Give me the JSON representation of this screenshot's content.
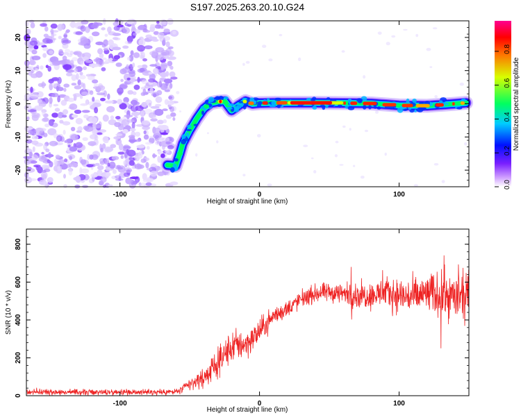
{
  "figure_title": "S197.2025.263.20.10.G24",
  "chart_data": [
    {
      "type": "heatmap",
      "name": "spectrogram",
      "xlabel": "Height of straight line (km)",
      "ylabel": "Frequency (Hz)",
      "xlim": [
        -167,
        150
      ],
      "ylim": [
        -25,
        25
      ],
      "xticks": [
        -100,
        0,
        100
      ],
      "xtick_labels": [
        "-100",
        "0",
        "100"
      ],
      "yticks": [
        -20,
        -10,
        0,
        10,
        20
      ],
      "ytick_labels": [
        "-20",
        "-10",
        "0",
        "10",
        "20"
      ],
      "noise_region_km": [
        -167,
        -65
      ],
      "signal_trace": {
        "x": [
          -66,
          -60,
          -57,
          -55,
          -50,
          -45,
          -40,
          -35,
          -30,
          -25,
          -20,
          -15,
          -10,
          -5,
          0,
          10,
          20,
          40,
          60,
          80,
          100,
          120,
          140,
          148
        ],
        "y": [
          -18.5,
          -18.7,
          -15,
          -12,
          -8,
          -4.5,
          -1.5,
          0.2,
          0.6,
          0.8,
          -2,
          -0.5,
          0.8,
          0,
          0.2,
          0.3,
          0.3,
          0.3,
          0.2,
          0.1,
          -0.5,
          -0.6,
          0,
          0.3
        ]
      },
      "colorbar": {
        "label": "Normalized spectral amplitude",
        "ticks": [
          0.0,
          0.2,
          0.4,
          0.6,
          0.8
        ],
        "tick_labels": [
          "0.0",
          "0.2",
          "0.4",
          "0.6",
          "0.8"
        ],
        "colors": [
          "#ffffff",
          "#cc99ff",
          "#7a1fff",
          "#0010ff",
          "#00ccff",
          "#00ff60",
          "#d8ff00",
          "#ff7000",
          "#ff0000",
          "#ff0090"
        ]
      }
    },
    {
      "type": "line",
      "name": "snr",
      "xlabel": "Height of straight line (km)",
      "ylabel": "SNR (10 * v/v)",
      "xlim": [
        -167,
        150
      ],
      "ylim": [
        0,
        880
      ],
      "xticks": [
        -100,
        0,
        100
      ],
      "xtick_labels": [
        "-100",
        "0",
        "100"
      ],
      "yticks": [
        0,
        200,
        400,
        600,
        800
      ],
      "ytick_labels": [
        "0",
        "200",
        "400",
        "600",
        "800"
      ],
      "color": "#ee2222",
      "series": {
        "x": [
          -167,
          -150,
          -120,
          -100,
          -80,
          -60,
          -55,
          -50,
          -45,
          -40,
          -35,
          -30,
          -25,
          -20,
          -15,
          -10,
          -5,
          0,
          5,
          10,
          20,
          30,
          40,
          50,
          60,
          70,
          80,
          90,
          100,
          110,
          120,
          130,
          140,
          150
        ],
        "y": [
          20,
          20,
          18,
          20,
          18,
          20,
          35,
          60,
          75,
          95,
          130,
          170,
          220,
          255,
          270,
          275,
          300,
          340,
          380,
          420,
          460,
          510,
          540,
          545,
          540,
          530,
          530,
          545,
          530,
          520,
          540,
          535,
          520,
          520
        ],
        "noise_amplitude": [
          12,
          12,
          12,
          12,
          12,
          14,
          20,
          25,
          30,
          40,
          45,
          55,
          60,
          65,
          65,
          60,
          55,
          50,
          45,
          40,
          35,
          35,
          35,
          40,
          45,
          50,
          55,
          60,
          70,
          75,
          80,
          90,
          95,
          100
        ]
      }
    }
  ]
}
